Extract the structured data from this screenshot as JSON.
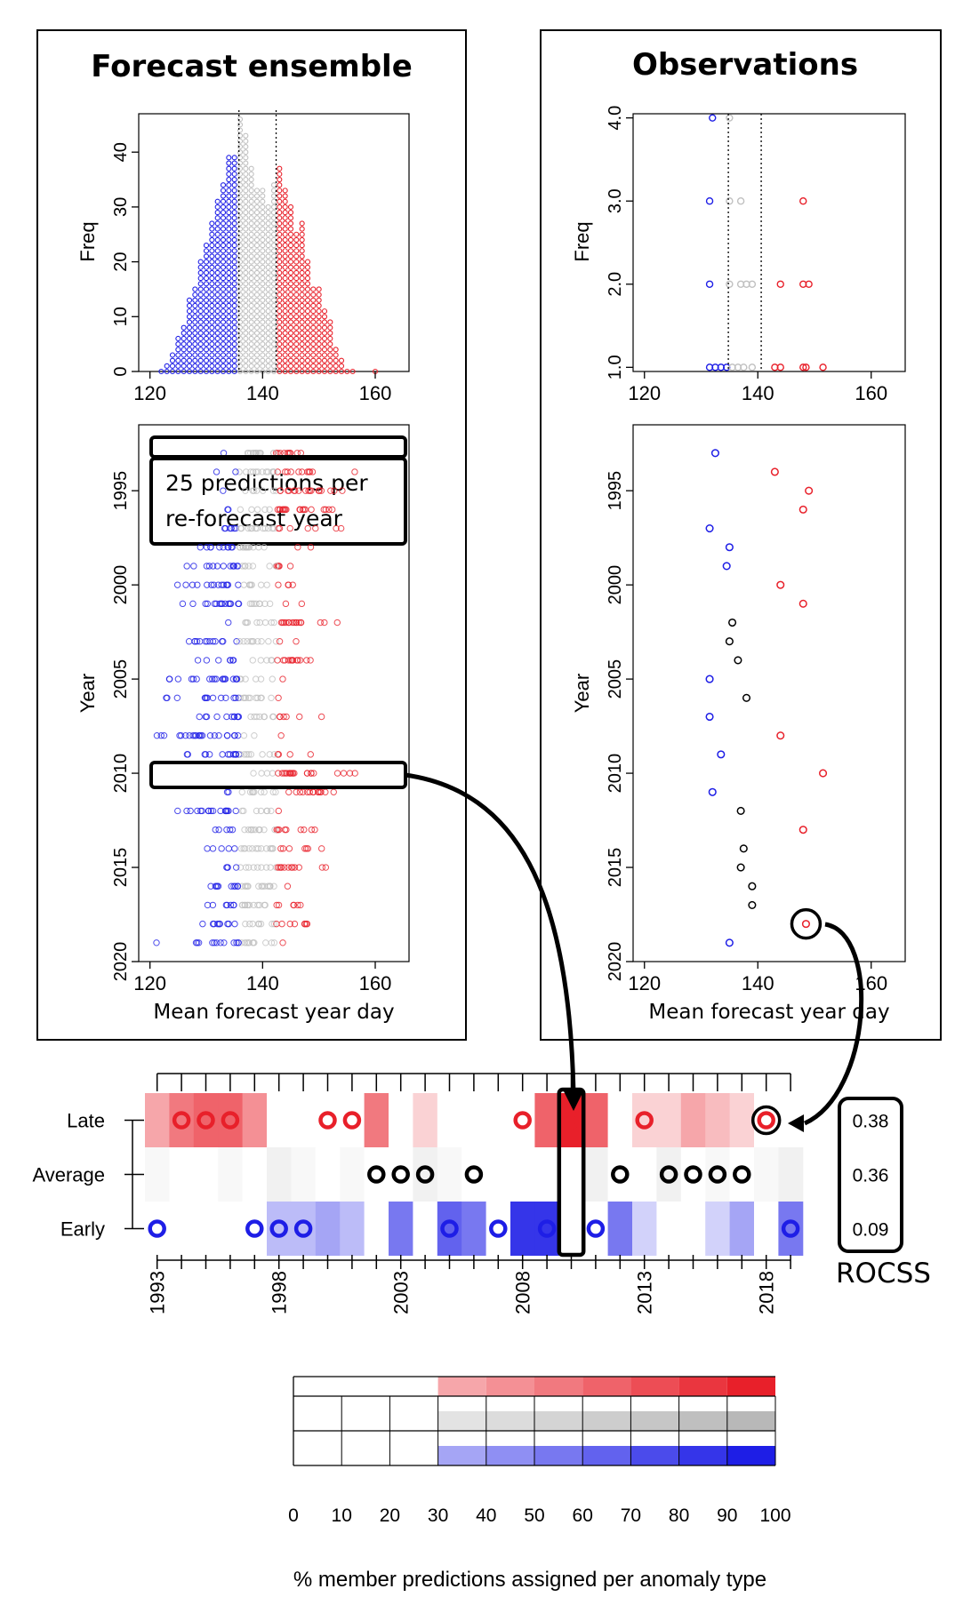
{
  "panels": {
    "left_title": "Forecast ensemble",
    "right_title": "Observations",
    "freq_label": "Freq",
    "year_label": "Year",
    "x_label": "Mean forecast year day",
    "annotation_line1": "25 predictions per",
    "annotation_line2": "re-forecast year",
    "rocss_label": "ROCSS",
    "legend_caption": "% member predictions assigned per anomaly type"
  },
  "colors": {
    "late": "#e8202a",
    "average": "#c0c0c0",
    "early": "#1e1ee6",
    "obs_average": "#000000"
  },
  "chart_data": [
    {
      "id": "forecast-histogram",
      "type": "scatter",
      "title": "Forecast ensemble",
      "ylabel": "Freq",
      "xlim": [
        118,
        166
      ],
      "ylim": [
        0,
        47
      ],
      "x_ticks": [
        "120",
        "140",
        "160"
      ],
      "y_ticks": [
        "0",
        "10",
        "20",
        "30",
        "40"
      ],
      "terciles": [
        135.8,
        142.4
      ],
      "description_bins": [
        [
          122,
          1
        ],
        [
          123,
          2
        ],
        [
          124,
          4
        ],
        [
          125,
          7
        ],
        [
          126,
          9
        ],
        [
          127,
          14
        ],
        [
          128,
          16
        ],
        [
          129,
          21
        ],
        [
          130,
          24
        ],
        [
          131,
          28
        ],
        [
          132,
          32
        ],
        [
          133,
          35
        ],
        [
          134,
          40
        ],
        [
          135,
          40
        ],
        [
          136,
          47
        ],
        [
          137,
          44
        ],
        [
          138,
          38
        ],
        [
          139,
          34
        ],
        [
          140,
          34
        ],
        [
          141,
          31
        ],
        [
          142,
          35
        ],
        [
          143,
          38
        ],
        [
          144,
          34
        ],
        [
          145,
          31
        ],
        [
          146,
          26
        ],
        [
          147,
          28
        ],
        [
          148,
          21
        ],
        [
          149,
          16
        ],
        [
          150,
          16
        ],
        [
          151,
          12
        ],
        [
          152,
          10
        ],
        [
          153,
          5
        ],
        [
          154,
          3
        ],
        [
          155,
          1
        ],
        [
          156,
          1
        ],
        [
          160,
          1
        ]
      ]
    },
    {
      "id": "forecast-years",
      "type": "scatter",
      "ylabel": "Year",
      "xlabel": "Mean forecast year day",
      "xlim": [
        118,
        166
      ],
      "ylim": [
        2020,
        1991.5
      ],
      "x_ticks": [
        "120",
        "140",
        "160"
      ],
      "y_ticks": [
        "1995",
        "2000",
        "2005",
        "2010",
        "2015",
        "2020"
      ],
      "terciles": [
        135.8,
        142.4
      ],
      "ensemble_size": 25
    },
    {
      "id": "observation-histogram",
      "type": "scatter",
      "title": "Observations",
      "ylabel": "Freq",
      "xlim": [
        118,
        166
      ],
      "ylim": [
        0.95,
        4.05
      ],
      "x_ticks": [
        "120",
        "140",
        "160"
      ],
      "y_ticks": [
        "1.0",
        "2.0",
        "3.0",
        "4.0"
      ],
      "terciles": [
        134.8,
        140.6
      ]
    },
    {
      "id": "observation-years",
      "type": "scatter",
      "ylabel": "Year",
      "xlabel": "Mean forecast year day",
      "xlim": [
        118,
        166
      ],
      "ylim": [
        2020,
        1991.5
      ],
      "x_ticks": [
        "120",
        "140",
        "160"
      ],
      "y_ticks": [
        "1995",
        "2000",
        "2005",
        "2010",
        "2015",
        "2020"
      ],
      "years": [
        1993,
        1994,
        1995,
        1996,
        1997,
        1998,
        1999,
        2000,
        2001,
        2002,
        2003,
        2004,
        2005,
        2006,
        2007,
        2008,
        2009,
        2010,
        2011,
        2012,
        2013,
        2014,
        2015,
        2016,
        2017,
        2018,
        2019
      ],
      "values": [
        132.5,
        143,
        149,
        148,
        131.5,
        135,
        134.5,
        144,
        148,
        135.5,
        135,
        136.5,
        131.5,
        138,
        131.5,
        144,
        133.5,
        151.5,
        132,
        137,
        148,
        137.5,
        137,
        139,
        139,
        148.5,
        135
      ],
      "category": [
        "early",
        "late",
        "late",
        "late",
        "early",
        "early",
        "early",
        "late",
        "late",
        "average",
        "average",
        "average",
        "early",
        "average",
        "early",
        "late",
        "early",
        "late",
        "early",
        "average",
        "late",
        "average",
        "average",
        "average",
        "average",
        "late",
        "early"
      ]
    },
    {
      "id": "tercile-heatmap",
      "type": "heatmap",
      "rows": [
        "Late",
        "Average",
        "Early"
      ],
      "years": [
        1993,
        1994,
        1995,
        1996,
        1997,
        1998,
        1999,
        2000,
        2001,
        2002,
        2003,
        2004,
        2005,
        2006,
        2007,
        2008,
        2009,
        2010,
        2011,
        2012,
        2013,
        2014,
        2015,
        2016,
        2017,
        2018,
        2019
      ],
      "x_tick_labels": [
        "1993",
        "1998",
        "2003",
        "2008",
        "2013",
        "2018"
      ],
      "late_pct": [
        40,
        60,
        70,
        70,
        50,
        0,
        0,
        0,
        0,
        60,
        0,
        20,
        0,
        0,
        0,
        0,
        70,
        100,
        70,
        0,
        20,
        20,
        40,
        30,
        20,
        0,
        0
      ],
      "average_pct": [
        10,
        0,
        0,
        10,
        0,
        20,
        10,
        0,
        10,
        0,
        0,
        20,
        10,
        0,
        0,
        0,
        0,
        0,
        20,
        0,
        0,
        20,
        0,
        10,
        0,
        10,
        20
      ],
      "early_pct": [
        0,
        0,
        0,
        0,
        0,
        30,
        30,
        40,
        30,
        0,
        60,
        0,
        70,
        60,
        0,
        90,
        90,
        0,
        0,
        60,
        20,
        0,
        0,
        20,
        40,
        0,
        60
      ],
      "observed": [
        "early",
        "late",
        "late",
        "late",
        "early",
        "early",
        "early",
        "late",
        "late",
        "average",
        "average",
        "average",
        "early",
        "average",
        "early",
        "late",
        "early",
        "late",
        "early",
        "average",
        "late",
        "average",
        "average",
        "average",
        "average",
        "late",
        "early"
      ],
      "rocss": [
        "0.38",
        "0.36",
        "0.09"
      ],
      "highlight_year": 2010
    },
    {
      "id": "legend",
      "type": "table",
      "scale": [
        "0",
        "10",
        "20",
        "30",
        "40",
        "50",
        "60",
        "70",
        "80",
        "90",
        "100"
      ],
      "bins": [
        0,
        10,
        20,
        30,
        40,
        50,
        60,
        70,
        80,
        90,
        100
      ]
    }
  ]
}
